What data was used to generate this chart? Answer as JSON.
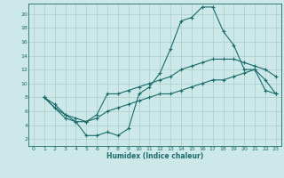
{
  "xlabel": "Humidex (Indice chaleur)",
  "bg_color": "#cce8e8",
  "grid_color": "#aacccc",
  "line_color": "#1a6b6b",
  "xlim": [
    -0.5,
    23.5
  ],
  "ylim": [
    1,
    21.5
  ],
  "x_ticks": [
    0,
    1,
    2,
    3,
    4,
    5,
    6,
    7,
    8,
    9,
    10,
    11,
    12,
    13,
    14,
    15,
    16,
    17,
    18,
    19,
    20,
    21,
    22,
    23
  ],
  "y_ticks": [
    2,
    4,
    6,
    8,
    10,
    12,
    14,
    16,
    18,
    20
  ],
  "curve1_x": [
    1,
    2,
    3,
    4,
    5,
    6,
    7,
    8,
    9,
    10,
    11,
    12,
    13,
    14,
    15,
    16,
    17,
    18,
    19,
    20,
    21,
    22,
    23
  ],
  "curve1_y": [
    8.0,
    6.5,
    5.0,
    4.5,
    2.5,
    2.5,
    3.0,
    2.5,
    3.5,
    8.5,
    9.5,
    11.5,
    15.0,
    19.0,
    19.5,
    21.0,
    21.0,
    17.5,
    15.5,
    12.0,
    12.0,
    10.5,
    8.5
  ],
  "curve2_x": [
    1,
    2,
    3,
    4,
    5,
    6,
    7,
    8,
    9,
    10,
    11,
    12,
    13,
    14,
    15,
    16,
    17,
    18,
    19,
    20,
    21,
    22,
    23
  ],
  "curve2_y": [
    8.0,
    7.0,
    5.5,
    5.0,
    4.5,
    5.5,
    8.5,
    8.5,
    9.0,
    9.5,
    10.0,
    10.5,
    11.0,
    12.0,
    12.5,
    13.0,
    13.5,
    13.5,
    13.5,
    13.0,
    12.5,
    12.0,
    11.0
  ],
  "curve3_x": [
    1,
    2,
    3,
    4,
    5,
    6,
    7,
    8,
    9,
    10,
    11,
    12,
    13,
    14,
    15,
    16,
    17,
    18,
    19,
    20,
    21,
    22,
    23
  ],
  "curve3_y": [
    8.0,
    6.5,
    5.5,
    4.5,
    4.5,
    5.0,
    6.0,
    6.5,
    7.0,
    7.5,
    8.0,
    8.5,
    8.5,
    9.0,
    9.5,
    10.0,
    10.5,
    10.5,
    11.0,
    11.5,
    12.0,
    9.0,
    8.5
  ]
}
